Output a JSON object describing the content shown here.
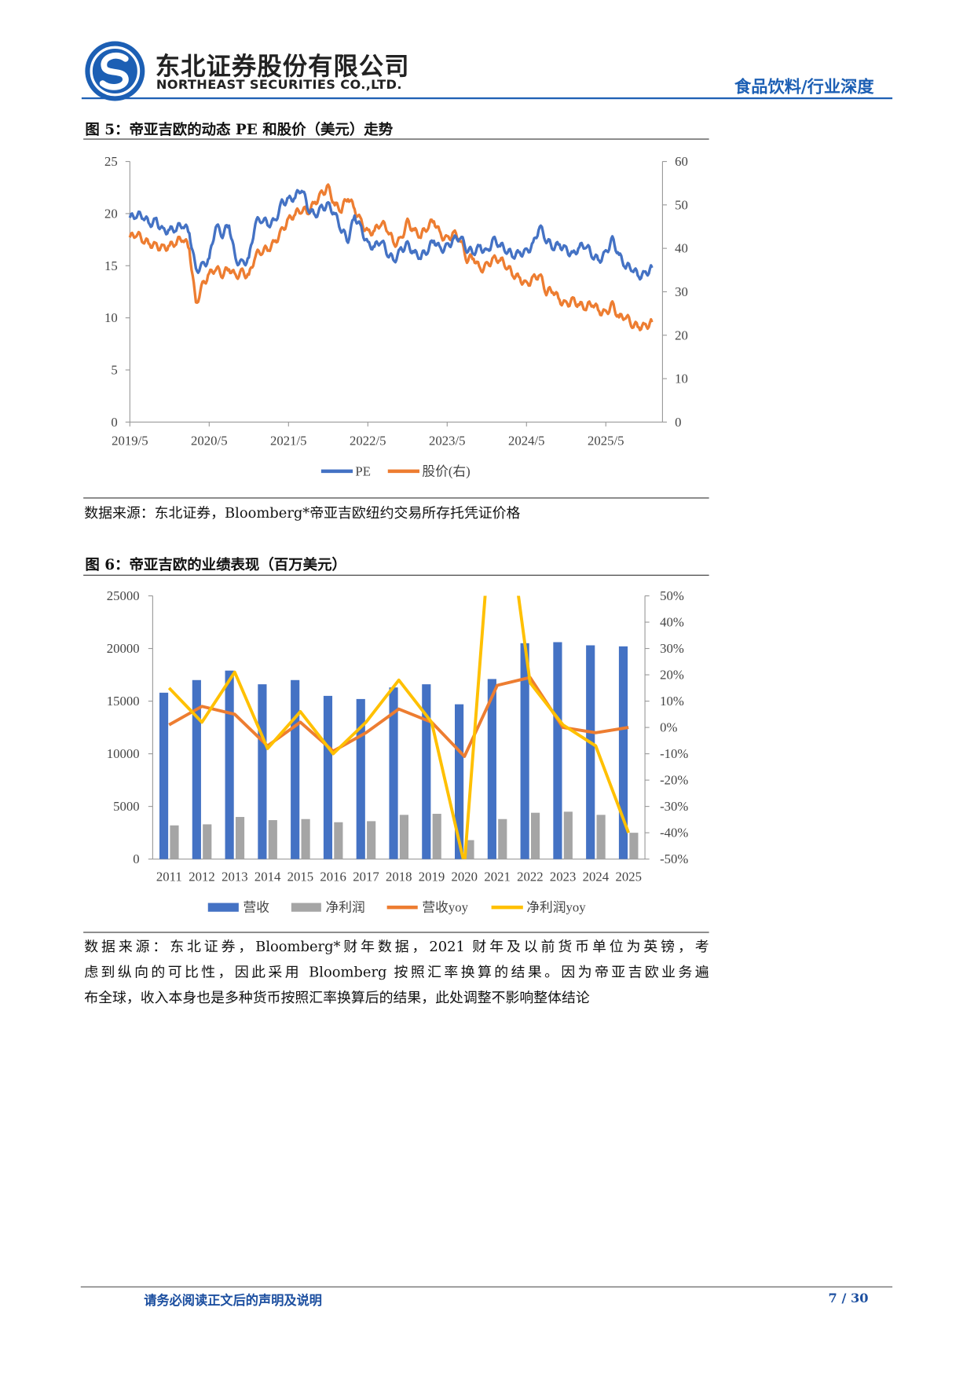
{
  "header": {
    "company_cn": "东北证券股份有限公司",
    "company_en": "NORTHEAST SECURITIES CO.,LTD.",
    "sector": "食品饮料/行业深度"
  },
  "figure5": {
    "title": "图 5：帝亚吉欧的动态 PE 和股价（美元）走势",
    "source": "数据来源：东北证券，Bloomberg*帝亚吉欧纽约交易所存托凭证价格"
  },
  "figure6": {
    "title": "图 6：帝亚吉欧的业绩表现（百万美元）",
    "source_lines": [
      "数据来源：东北证券，Bloomberg*财年数据，2021 财年及以前货币单位为英镑，考",
      "虑到纵向的可比性，因此采用 Bloomberg 按照汇率换算的结果。因为帝亚吉欧业务遍",
      "布全球，收入本身也是多种货币按照汇率换算后的结果，此处调整不影响整体结论"
    ]
  },
  "footer": {
    "disclaimer": "请务必阅读正文后的声明及说明",
    "page": "7 / 30"
  },
  "colors": {
    "brand": "#1c5fb4",
    "pe": "#4472c4",
    "price": "#ed7d31",
    "revenue": "#4472c4",
    "profit": "#a5a5a5",
    "rev_yoy": "#ed7d31",
    "profit_yoy": "#ffc000"
  },
  "chart_data": [
    {
      "type": "line",
      "title": "帝亚吉欧的动态 PE 和股价（美元）走势",
      "x_ticks": [
        "2019/5",
        "2020/5",
        "2021/5",
        "2022/5",
        "2023/5",
        "2024/5",
        "2025/5"
      ],
      "x_start": "2019/5",
      "x_step": "month",
      "yleft": {
        "ticks": [
          "0",
          "5",
          "10",
          "15",
          "20",
          "25"
        ],
        "ylim": [
          0,
          25
        ]
      },
      "yright": {
        "ticks": [
          "0",
          "10",
          "20",
          "30",
          "40",
          "50",
          "60"
        ],
        "ylim": [
          0,
          60
        ]
      },
      "legend": [
        "PE",
        "股价(右)"
      ],
      "legend_position": "bottom",
      "series": [
        {
          "name": "PE",
          "axis": "left",
          "values": [
            19.6,
            19.9,
            19.8,
            19.0,
            19.3,
            18.3,
            18.4,
            18.6,
            19.0,
            18.2,
            14.5,
            15.0,
            15.6,
            18.9,
            18.0,
            19.0,
            15.5,
            15.2,
            15.6,
            19.2,
            19.5,
            19.0,
            19.3,
            21.0,
            21.3,
            21.6,
            22.5,
            20.5,
            19.8,
            20.5,
            20.8,
            20.0,
            18.5,
            17.5,
            19.8,
            18.5,
            17.0,
            16.8,
            17.5,
            16.2,
            15.5,
            16.5,
            17.0,
            16.2,
            15.9,
            16.5,
            17.5,
            16.5,
            16.8,
            17.5,
            17.8,
            16.6,
            16.3,
            16.8,
            16.2,
            17.5,
            17.0,
            16.5,
            16.0,
            16.2,
            16.3,
            17.0,
            18.8,
            17.5,
            16.8,
            17.0,
            16.5,
            16.0,
            16.8,
            17.0,
            16.0,
            15.5,
            16.2,
            17.5,
            16.0,
            15.0,
            14.8,
            14.0,
            14.2,
            14.8
          ]
        },
        {
          "name": "股价(右)",
          "axis": "right",
          "values": [
            42.5,
            43.5,
            42.0,
            41.0,
            40.5,
            40.0,
            40.5,
            41.5,
            42.5,
            40.0,
            27.0,
            31.5,
            34.0,
            35.5,
            34.0,
            35.5,
            33.5,
            34.5,
            33.5,
            38.5,
            39.5,
            40.0,
            41.5,
            44.0,
            46.5,
            48.0,
            49.0,
            48.5,
            50.5,
            52.5,
            54.0,
            50.0,
            49.0,
            52.0,
            49.0,
            46.0,
            43.5,
            44.0,
            46.0,
            44.5,
            41.0,
            42.0,
            46.0,
            44.0,
            43.0,
            45.0,
            46.5,
            43.0,
            42.0,
            43.5,
            42.0,
            37.5,
            38.0,
            35.0,
            36.0,
            37.5,
            37.5,
            36.0,
            34.0,
            33.0,
            31.5,
            33.0,
            34.0,
            30.0,
            30.5,
            28.0,
            27.0,
            28.0,
            27.0,
            26.5,
            27.5,
            25.5,
            25.0,
            27.0,
            24.0,
            24.5,
            22.5,
            22.0,
            22.0,
            23.0
          ]
        }
      ]
    },
    {
      "type": "bar",
      "title": "帝亚吉欧的业绩表现（百万美元）",
      "categories": [
        "2011",
        "2012",
        "2013",
        "2014",
        "2015",
        "2016",
        "2017",
        "2018",
        "2019",
        "2020",
        "2021",
        "2022",
        "2023",
        "2024",
        "2025"
      ],
      "yleft": {
        "ticks": [
          "0",
          "5000",
          "10000",
          "15000",
          "20000",
          "25000"
        ],
        "ylim": [
          0,
          25000
        ]
      },
      "yright": {
        "ticks": [
          "-50%",
          "-40%",
          "-30%",
          "-20%",
          "-10%",
          "0%",
          "10%",
          "20%",
          "30%",
          "40%",
          "50%"
        ],
        "ylim": [
          -50,
          50
        ]
      },
      "legend": [
        "营收",
        "净利润",
        "营收yoy",
        "净利润yoy"
      ],
      "legend_position": "bottom",
      "series": [
        {
          "name": "营收",
          "type": "bar",
          "axis": "left",
          "values": [
            15800,
            17000,
            17900,
            16600,
            17000,
            15500,
            15200,
            16300,
            16600,
            14700,
            17100,
            20500,
            20600,
            20300,
            20200
          ]
        },
        {
          "name": "净利润",
          "type": "bar",
          "axis": "left",
          "values": [
            3200,
            3300,
            4000,
            3700,
            3800,
            3500,
            3600,
            4200,
            4300,
            1800,
            3800,
            4400,
            4500,
            4200,
            2500
          ]
        },
        {
          "name": "营收yoy",
          "type": "line",
          "axis": "right",
          "unit": "%",
          "values": [
            1,
            8,
            5,
            -7,
            2,
            -9,
            -2,
            7,
            2,
            -11,
            16,
            19,
            0,
            -2,
            0
          ]
        },
        {
          "name": "净利润yoy",
          "type": "line",
          "axis": "right",
          "unit": "%",
          "values": [
            15,
            2,
            21,
            -8,
            6,
            -10,
            2,
            18,
            2,
            -52,
            110,
            17,
            1,
            -7,
            -40
          ]
        }
      ]
    }
  ]
}
